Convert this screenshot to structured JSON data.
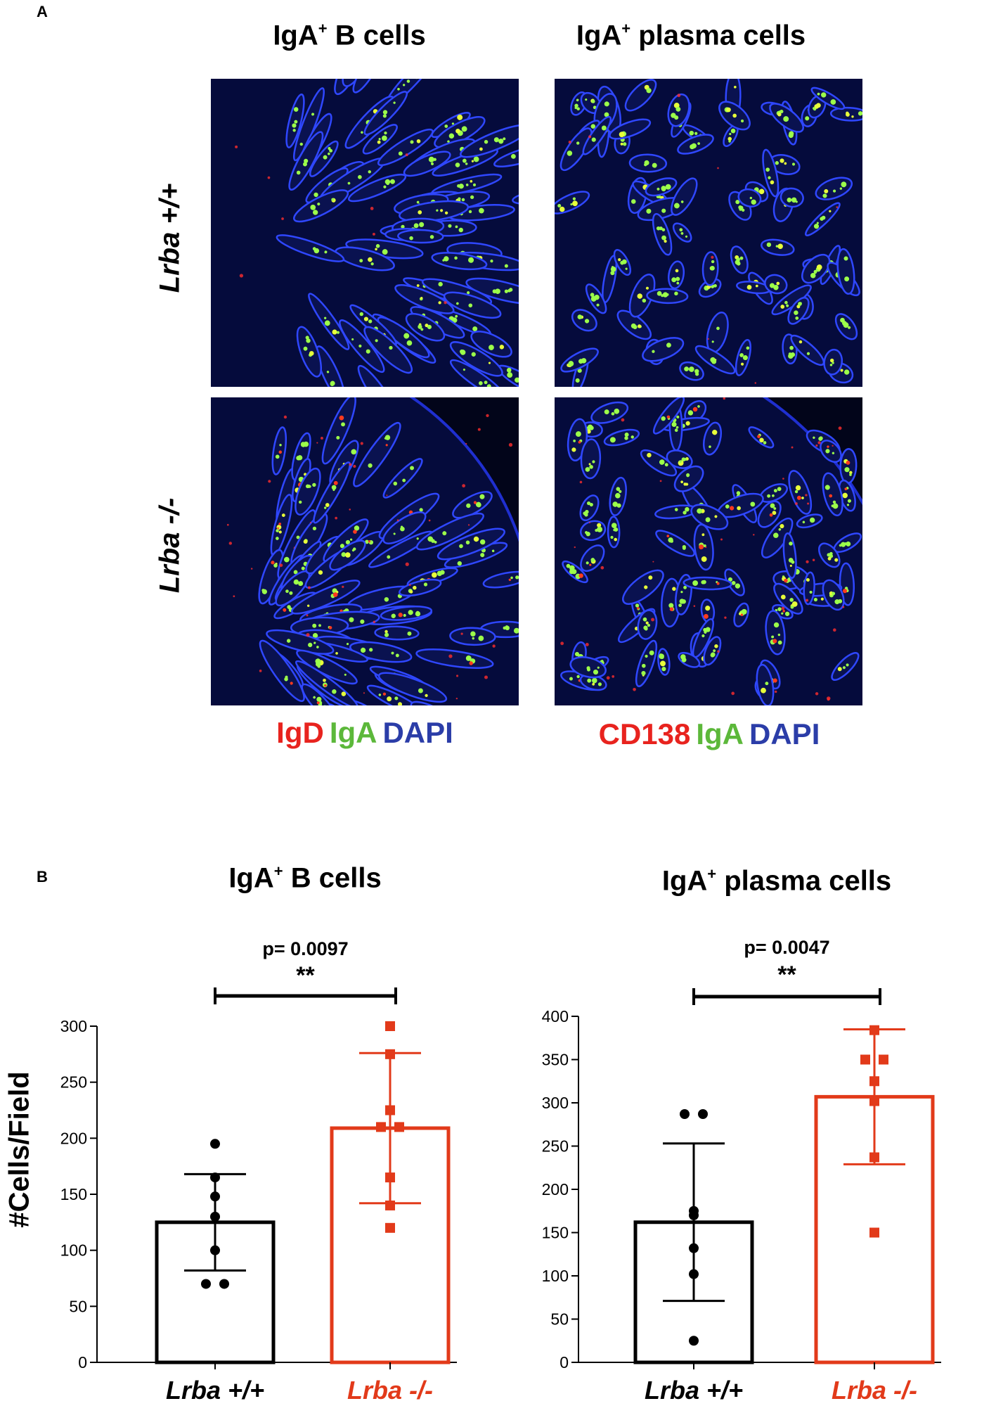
{
  "panel_a": {
    "letter": "A",
    "col_titles": [
      {
        "main": "IgA",
        "sup": "+",
        "rest": " B cells"
      },
      {
        "main": "IgA",
        "sup": "+",
        "rest": " plasma cells"
      }
    ],
    "row_labels": [
      {
        "text": "Lrba +/+",
        "color": "#000000"
      },
      {
        "text": "Lrba -/-",
        "color": "#e8231e"
      }
    ],
    "stain_legends": [
      [
        {
          "text": "IgD",
          "color": "#e8231e"
        },
        {
          "text": "IgA",
          "color": "#5cb83a"
        },
        {
          "text": "DAPI",
          "color": "#2b3da8"
        }
      ],
      [
        {
          "text": "CD138",
          "color": "#e8231e"
        },
        {
          "text": "IgA",
          "color": "#5cb83a"
        },
        {
          "text": "DAPI",
          "color": "#2b3da8"
        }
      ]
    ]
  },
  "panel_b": {
    "letter": "B",
    "ylabel": "#Cells/Field"
  },
  "chart_data": [
    {
      "type": "bar",
      "title": {
        "main": "IgA",
        "sup": "+",
        "rest": " B cells"
      },
      "categories": [
        "Lrba +/+",
        "Lrba -/-"
      ],
      "category_colors": [
        "#000000",
        "#e23a1a"
      ],
      "values": [
        125,
        209
      ],
      "sd": [
        43,
        67
      ],
      "points": [
        [
          195,
          165,
          148,
          130,
          100,
          70,
          70
        ],
        [
          300,
          275,
          225,
          210,
          210,
          165,
          140,
          120
        ]
      ],
      "ylim": [
        0,
        300
      ],
      "yticks": [
        0,
        50,
        100,
        150,
        200,
        250,
        300
      ],
      "ylabel": "#Cells/Field",
      "significance": {
        "p_text": "p= 0.0097",
        "stars": "**"
      }
    },
    {
      "type": "bar",
      "title": {
        "main": "IgA",
        "sup": "+",
        "rest": " plasma cells"
      },
      "categories": [
        "Lrba +/+",
        "Lrba -/-"
      ],
      "category_colors": [
        "#000000",
        "#e23a1a"
      ],
      "values": [
        162,
        307
      ],
      "sd": [
        91,
        78
      ],
      "points": [
        [
          287,
          287,
          175,
          170,
          132,
          102,
          25
        ],
        [
          384,
          350,
          350,
          325,
          302,
          237,
          150
        ]
      ],
      "ylim": [
        0,
        400
      ],
      "yticks": [
        0,
        50,
        100,
        150,
        200,
        250,
        300,
        350,
        400
      ],
      "significance": {
        "p_text": "p= 0.0047",
        "stars": "**"
      }
    }
  ]
}
